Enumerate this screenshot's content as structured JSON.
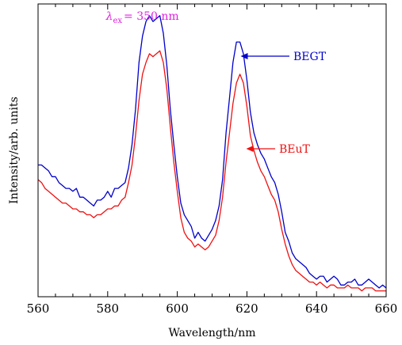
{
  "chart_data": {
    "type": "line",
    "xlabel": "Wavelength/nm",
    "ylabel": "Intensity/arb. units",
    "xlim": [
      560,
      660
    ],
    "ylim": [
      0,
      1
    ],
    "x_ticks": [
      560,
      580,
      600,
      620,
      640,
      660
    ],
    "y_ticks_labeled": false,
    "grid": false,
    "annotation": {
      "symbol": "λ",
      "subscript": "ex",
      "text": "= 350 nm",
      "color": "#e020e0"
    },
    "series": [
      {
        "name": "BEGT",
        "color": "#0000cc",
        "x": [
          560,
          561,
          562,
          563,
          564,
          565,
          566,
          567,
          568,
          569,
          570,
          571,
          572,
          573,
          574,
          575,
          576,
          577,
          578,
          579,
          580,
          581,
          582,
          583,
          584,
          585,
          586,
          587,
          588,
          589,
          590,
          591,
          592,
          593,
          594,
          595,
          596,
          597,
          598,
          599,
          600,
          601,
          602,
          603,
          604,
          605,
          606,
          607,
          608,
          609,
          610,
          611,
          612,
          613,
          614,
          615,
          616,
          617,
          618,
          619,
          620,
          621,
          622,
          623,
          624,
          625,
          626,
          627,
          628,
          629,
          630,
          631,
          632,
          633,
          634,
          635,
          636,
          637,
          638,
          639,
          640,
          641,
          642,
          643,
          644,
          645,
          646,
          647,
          648,
          649,
          650,
          651,
          652,
          653,
          654,
          655,
          656,
          657,
          658,
          659,
          660
        ],
        "y": [
          0.45,
          0.45,
          0.44,
          0.43,
          0.41,
          0.41,
          0.39,
          0.38,
          0.37,
          0.37,
          0.36,
          0.37,
          0.34,
          0.34,
          0.33,
          0.32,
          0.31,
          0.33,
          0.33,
          0.34,
          0.36,
          0.34,
          0.37,
          0.37,
          0.38,
          0.39,
          0.44,
          0.52,
          0.64,
          0.8,
          0.89,
          0.94,
          0.96,
          0.94,
          0.95,
          0.96,
          0.9,
          0.79,
          0.64,
          0.52,
          0.41,
          0.32,
          0.28,
          0.26,
          0.24,
          0.2,
          0.22,
          0.2,
          0.19,
          0.21,
          0.23,
          0.26,
          0.31,
          0.4,
          0.56,
          0.68,
          0.8,
          0.87,
          0.87,
          0.83,
          0.74,
          0.63,
          0.56,
          0.52,
          0.49,
          0.47,
          0.44,
          0.41,
          0.39,
          0.35,
          0.29,
          0.22,
          0.19,
          0.15,
          0.13,
          0.12,
          0.11,
          0.1,
          0.08,
          0.07,
          0.06,
          0.07,
          0.07,
          0.05,
          0.06,
          0.07,
          0.06,
          0.04,
          0.04,
          0.05,
          0.05,
          0.06,
          0.04,
          0.04,
          0.05,
          0.06,
          0.05,
          0.04,
          0.03,
          0.04,
          0.03
        ]
      },
      {
        "name": "BEuT",
        "color": "#ee1111",
        "x": [
          560,
          561,
          562,
          563,
          564,
          565,
          566,
          567,
          568,
          569,
          570,
          571,
          572,
          573,
          574,
          575,
          576,
          577,
          578,
          579,
          580,
          581,
          582,
          583,
          584,
          585,
          586,
          587,
          588,
          589,
          590,
          591,
          592,
          593,
          594,
          595,
          596,
          597,
          598,
          599,
          600,
          601,
          602,
          603,
          604,
          605,
          606,
          607,
          608,
          609,
          610,
          611,
          612,
          613,
          614,
          615,
          616,
          617,
          618,
          619,
          620,
          621,
          622,
          623,
          624,
          625,
          626,
          627,
          628,
          629,
          630,
          631,
          632,
          633,
          634,
          635,
          636,
          637,
          638,
          639,
          640,
          641,
          642,
          643,
          644,
          645,
          646,
          647,
          648,
          649,
          650,
          651,
          652,
          653,
          654,
          655,
          656,
          657,
          658,
          659,
          660
        ],
        "y": [
          0.4,
          0.39,
          0.37,
          0.36,
          0.35,
          0.34,
          0.33,
          0.32,
          0.32,
          0.31,
          0.3,
          0.3,
          0.29,
          0.29,
          0.28,
          0.28,
          0.27,
          0.28,
          0.28,
          0.29,
          0.3,
          0.3,
          0.31,
          0.31,
          0.33,
          0.34,
          0.39,
          0.45,
          0.55,
          0.67,
          0.76,
          0.8,
          0.83,
          0.82,
          0.83,
          0.84,
          0.8,
          0.71,
          0.58,
          0.46,
          0.36,
          0.27,
          0.22,
          0.2,
          0.19,
          0.17,
          0.18,
          0.17,
          0.16,
          0.17,
          0.19,
          0.21,
          0.26,
          0.34,
          0.46,
          0.56,
          0.66,
          0.73,
          0.76,
          0.73,
          0.65,
          0.55,
          0.5,
          0.46,
          0.43,
          0.41,
          0.38,
          0.35,
          0.33,
          0.29,
          0.23,
          0.18,
          0.14,
          0.11,
          0.09,
          0.08,
          0.07,
          0.06,
          0.05,
          0.05,
          0.04,
          0.05,
          0.04,
          0.03,
          0.04,
          0.04,
          0.03,
          0.03,
          0.03,
          0.04,
          0.03,
          0.03,
          0.03,
          0.02,
          0.03,
          0.03,
          0.03,
          0.02,
          0.02,
          0.02,
          0.02
        ]
      }
    ]
  }
}
